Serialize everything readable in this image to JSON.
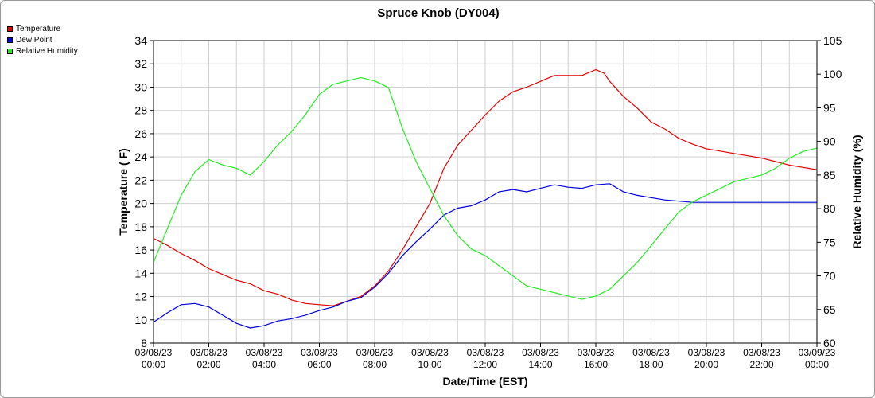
{
  "chart_data": {
    "type": "line",
    "title": "Spruce Knob (DY004)",
    "xlabel": "Date/Time (EST)",
    "ylabel_left": "Temperature ( F)",
    "ylabel_right": "Relative Humidity (%)",
    "ylim_left": [
      8,
      34
    ],
    "ylim_right": [
      60,
      105
    ],
    "xlim_hours": [
      0,
      24
    ],
    "grid": true,
    "legend_position": "top-left",
    "x_ticks": [
      {
        "date": "03/08/23",
        "time": "00:00",
        "h": 0
      },
      {
        "date": "03/08/23",
        "time": "02:00",
        "h": 2
      },
      {
        "date": "03/08/23",
        "time": "04:00",
        "h": 4
      },
      {
        "date": "03/08/23",
        "time": "06:00",
        "h": 6
      },
      {
        "date": "03/08/23",
        "time": "08:00",
        "h": 8
      },
      {
        "date": "03/08/23",
        "time": "10:00",
        "h": 10
      },
      {
        "date": "03/08/23",
        "time": "12:00",
        "h": 12
      },
      {
        "date": "03/08/23",
        "time": "14:00",
        "h": 14
      },
      {
        "date": "03/08/23",
        "time": "16:00",
        "h": 16
      },
      {
        "date": "03/08/23",
        "time": "18:00",
        "h": 18
      },
      {
        "date": "03/08/23",
        "time": "20:00",
        "h": 20
      },
      {
        "date": "03/08/23",
        "time": "22:00",
        "h": 22
      },
      {
        "date": "03/09/23",
        "time": "00:00",
        "h": 24
      }
    ],
    "y_ticks_left": [
      8,
      10,
      12,
      14,
      16,
      18,
      20,
      22,
      24,
      26,
      28,
      30,
      32,
      34
    ],
    "y_ticks_right": [
      60,
      65,
      70,
      75,
      80,
      85,
      90,
      95,
      100,
      105
    ],
    "series": [
      {
        "name": "Temperature",
        "color": "#e00000",
        "axis": "left",
        "points": [
          [
            0,
            17.0
          ],
          [
            0.5,
            16.4
          ],
          [
            1,
            15.7
          ],
          [
            1.5,
            15.1
          ],
          [
            2,
            14.4
          ],
          [
            2.5,
            13.9
          ],
          [
            3,
            13.4
          ],
          [
            3.5,
            13.1
          ],
          [
            4,
            12.5
          ],
          [
            4.5,
            12.2
          ],
          [
            5,
            11.7
          ],
          [
            5.5,
            11.4
          ],
          [
            6,
            11.3
          ],
          [
            6.5,
            11.2
          ],
          [
            7,
            11.6
          ],
          [
            7.5,
            12.0
          ],
          [
            8,
            12.9
          ],
          [
            8.5,
            14.2
          ],
          [
            9,
            16.0
          ],
          [
            9.5,
            18.0
          ],
          [
            10,
            20.0
          ],
          [
            10.5,
            23.0
          ],
          [
            11,
            25.0
          ],
          [
            11.5,
            26.3
          ],
          [
            12,
            27.6
          ],
          [
            12.5,
            28.8
          ],
          [
            13,
            29.6
          ],
          [
            13.5,
            30.0
          ],
          [
            14,
            30.5
          ],
          [
            14.5,
            31.0
          ],
          [
            15,
            31.0
          ],
          [
            15.5,
            31.0
          ],
          [
            16,
            31.5
          ],
          [
            16.3,
            31.2
          ],
          [
            16.5,
            30.5
          ],
          [
            17,
            29.2
          ],
          [
            17.5,
            28.2
          ],
          [
            18,
            27.0
          ],
          [
            18.5,
            26.4
          ],
          [
            19,
            25.6
          ],
          [
            19.5,
            25.1
          ],
          [
            20,
            24.7
          ],
          [
            20.5,
            24.5
          ],
          [
            21,
            24.3
          ],
          [
            21.5,
            24.1
          ],
          [
            22,
            23.9
          ],
          [
            22.5,
            23.6
          ],
          [
            23,
            23.3
          ],
          [
            23.5,
            23.1
          ],
          [
            24,
            22.9
          ]
        ]
      },
      {
        "name": "Dew Point",
        "color": "#0000e0",
        "axis": "left",
        "points": [
          [
            0,
            9.8
          ],
          [
            0.5,
            10.6
          ],
          [
            1,
            11.3
          ],
          [
            1.5,
            11.4
          ],
          [
            2,
            11.1
          ],
          [
            2.5,
            10.4
          ],
          [
            3,
            9.7
          ],
          [
            3.5,
            9.3
          ],
          [
            4,
            9.5
          ],
          [
            4.5,
            9.9
          ],
          [
            5,
            10.1
          ],
          [
            5.5,
            10.4
          ],
          [
            6,
            10.8
          ],
          [
            6.5,
            11.1
          ],
          [
            7,
            11.6
          ],
          [
            7.5,
            11.9
          ],
          [
            8,
            12.8
          ],
          [
            8.5,
            14.0
          ],
          [
            9,
            15.5
          ],
          [
            9.5,
            16.7
          ],
          [
            10,
            17.8
          ],
          [
            10.5,
            19.0
          ],
          [
            11,
            19.6
          ],
          [
            11.5,
            19.8
          ],
          [
            12,
            20.3
          ],
          [
            12.5,
            21.0
          ],
          [
            13,
            21.2
          ],
          [
            13.5,
            21.0
          ],
          [
            14,
            21.3
          ],
          [
            14.5,
            21.6
          ],
          [
            15,
            21.4
          ],
          [
            15.5,
            21.3
          ],
          [
            16,
            21.6
          ],
          [
            16.5,
            21.7
          ],
          [
            17,
            21.0
          ],
          [
            17.5,
            20.7
          ],
          [
            18,
            20.5
          ],
          [
            18.5,
            20.3
          ],
          [
            19,
            20.2
          ],
          [
            19.5,
            20.1
          ],
          [
            20,
            20.1
          ],
          [
            20.5,
            20.1
          ],
          [
            21,
            20.1
          ],
          [
            21.5,
            20.1
          ],
          [
            22,
            20.1
          ],
          [
            22.5,
            20.1
          ],
          [
            23,
            20.1
          ],
          [
            23.5,
            20.1
          ],
          [
            24,
            20.1
          ]
        ]
      },
      {
        "name": "Relative Humidity",
        "color": "#22ee22",
        "axis": "right",
        "points": [
          [
            0,
            72
          ],
          [
            0.5,
            77
          ],
          [
            1,
            82
          ],
          [
            1.5,
            85.5
          ],
          [
            2,
            87.3
          ],
          [
            2.5,
            86.5
          ],
          [
            3,
            86
          ],
          [
            3.5,
            85
          ],
          [
            4,
            87
          ],
          [
            4.5,
            89.5
          ],
          [
            5,
            91.5
          ],
          [
            5.5,
            94
          ],
          [
            6,
            97
          ],
          [
            6.5,
            98.5
          ],
          [
            7,
            99
          ],
          [
            7.5,
            99.5
          ],
          [
            8,
            99
          ],
          [
            8.5,
            98
          ],
          [
            9,
            92
          ],
          [
            9.5,
            87
          ],
          [
            10,
            83
          ],
          [
            10.5,
            79
          ],
          [
            11,
            76
          ],
          [
            11.5,
            74
          ],
          [
            12,
            73
          ],
          [
            12.5,
            71.5
          ],
          [
            13,
            70
          ],
          [
            13.5,
            68.5
          ],
          [
            14,
            68
          ],
          [
            14.5,
            67.5
          ],
          [
            15,
            67
          ],
          [
            15.5,
            66.5
          ],
          [
            16,
            67
          ],
          [
            16.5,
            68
          ],
          [
            17,
            70
          ],
          [
            17.5,
            72
          ],
          [
            18,
            74.5
          ],
          [
            18.5,
            77
          ],
          [
            19,
            79.5
          ],
          [
            19.5,
            81
          ],
          [
            20,
            82
          ],
          [
            20.5,
            83
          ],
          [
            21,
            84
          ],
          [
            21.5,
            84.5
          ],
          [
            22,
            85
          ],
          [
            22.5,
            86
          ],
          [
            23,
            87.5
          ],
          [
            23.5,
            88.5
          ],
          [
            24,
            89
          ]
        ]
      }
    ]
  }
}
